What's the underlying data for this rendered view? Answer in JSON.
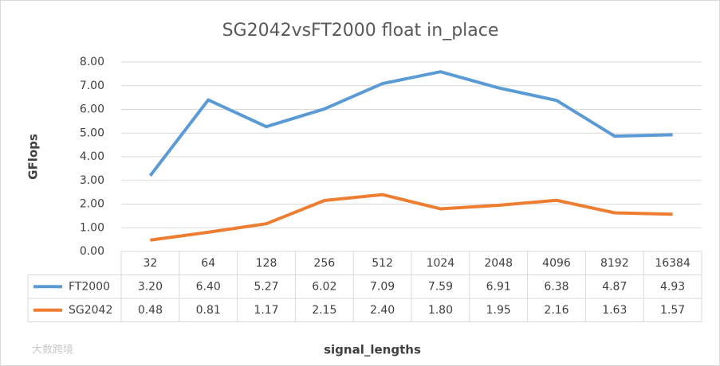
{
  "chart_data": {
    "type": "line",
    "title": "SG2042vsFT2000  float in_place",
    "x_label": "signal_lengths",
    "y_label": "GFlops",
    "categories": [
      "32",
      "64",
      "128",
      "256",
      "512",
      "1024",
      "2048",
      "4096",
      "8192",
      "16384"
    ],
    "series": [
      {
        "name": "FT2000",
        "color": "#5b9bd5",
        "values": [
          3.2,
          6.4,
          5.27,
          6.02,
          7.09,
          7.59,
          6.91,
          6.38,
          4.87,
          4.93
        ],
        "value_labels": [
          "3.20",
          "6.40",
          "5.27",
          "6.02",
          "7.09",
          "7.59",
          "6.91",
          "6.38",
          "4.87",
          "4.93"
        ]
      },
      {
        "name": "SG2042",
        "color": "#ed7d31",
        "values": [
          0.48,
          0.81,
          1.17,
          2.15,
          2.4,
          1.8,
          1.95,
          2.16,
          1.63,
          1.57
        ],
        "value_labels": [
          "0.48",
          "0.81",
          "1.17",
          "2.15",
          "2.40",
          "1.80",
          "1.95",
          "2.16",
          "1.63",
          "1.57"
        ]
      }
    ],
    "ylim": [
      0,
      8
    ],
    "yticks": [
      {
        "value": 0,
        "label": "0.00"
      },
      {
        "value": 1,
        "label": "1.00"
      },
      {
        "value": 2,
        "label": "2.00"
      },
      {
        "value": 3,
        "label": "3.00"
      },
      {
        "value": 4,
        "label": "4.00"
      },
      {
        "value": 5,
        "label": "5.00"
      },
      {
        "value": 6,
        "label": "6.00"
      },
      {
        "value": 7,
        "label": "7.00"
      },
      {
        "value": 8,
        "label": "8.00"
      }
    ],
    "grid": true,
    "watermark": "大数跨境"
  }
}
